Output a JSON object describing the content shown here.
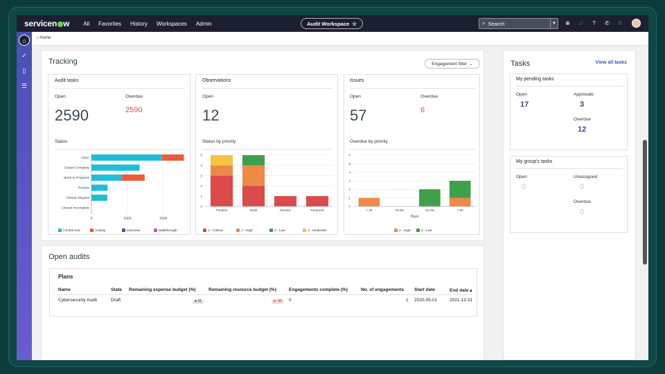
{
  "nav": {
    "logo": "servicenow",
    "links": [
      "All",
      "Favorites",
      "History",
      "Workspaces",
      "Admin"
    ],
    "workspace": "Audit Workspace",
    "search_placeholder": "Search"
  },
  "breadcrumb": "Home",
  "tracking": {
    "title": "Tracking",
    "filter": "Engagement filter",
    "audit_tasks": {
      "title": "Audit tasks",
      "open_label": "Open",
      "open": "2590",
      "overdue_label": "Overdue",
      "overdue": "2590",
      "status_label": "Status"
    },
    "observations": {
      "title": "Observations",
      "open_label": "Open",
      "open": "12",
      "status_label": "Status by priority"
    },
    "issues": {
      "title": "Issues",
      "open_label": "Open",
      "open": "57",
      "overdue_label": "Overdue",
      "overdue": "6",
      "status_label": "Overdue by priority",
      "xlabel": "Days"
    }
  },
  "chart_data": [
    {
      "type": "bar",
      "orientation": "horizontal",
      "stacked": true,
      "categories": [
        "Open",
        "Closed Complete",
        "Work In Progress",
        "Review",
        "Closed Skipped",
        "Closed Incomplete"
      ],
      "series": [
        {
          "name": "Control test",
          "color": "#1ebfd6",
          "values": [
            1960,
            1340,
            850,
            450,
            440,
            0
          ]
        },
        {
          "name": "Activity",
          "color": "#ee5a3a",
          "values": [
            610,
            0,
            630,
            0,
            0,
            0
          ]
        },
        {
          "name": "Interview",
          "color": "#6a3fc0",
          "values": [
            0,
            0,
            0,
            0,
            0,
            0
          ]
        },
        {
          "name": "Walkthrough",
          "color": "#d04fc4",
          "values": [
            0,
            0,
            0,
            0,
            0,
            0
          ]
        }
      ],
      "xticks": [
        "0",
        "1000",
        "2000"
      ],
      "xlim": [
        0,
        2600
      ]
    },
    {
      "type": "bar",
      "stacked": true,
      "categories": [
        "Finalize",
        "Draft",
        "Review",
        "Respond"
      ],
      "series": [
        {
          "name": "1 - Critical",
          "color": "#dc4a4a",
          "values": [
            3,
            2,
            1,
            1
          ]
        },
        {
          "name": "2 - High",
          "color": "#ee8a48",
          "values": [
            1,
            2,
            0,
            0
          ]
        },
        {
          "name": "4 - Low",
          "color": "#3fa04a",
          "values": [
            0,
            1,
            0,
            0
          ]
        },
        {
          "name": "3 - Moderate",
          "color": "#f6c443",
          "values": [
            1,
            0,
            0,
            0
          ]
        }
      ],
      "yticks": [
        "0",
        "1",
        "2",
        "3",
        "4",
        "5"
      ],
      "ylim": [
        0,
        5
      ]
    },
    {
      "type": "bar",
      "stacked": true,
      "categories": [
        "< 30",
        "31-60",
        "61-90",
        "> 90"
      ],
      "series": [
        {
          "name": "2 - High",
          "color": "#ee8a48",
          "values": [
            1,
            0,
            0,
            1
          ]
        },
        {
          "name": "4 - Low",
          "color": "#3fa04a",
          "values": [
            0,
            0,
            2,
            2
          ]
        }
      ],
      "yticks": [
        "0",
        "1",
        "2",
        "3",
        "4",
        "5",
        "6"
      ],
      "ylim": [
        0,
        6
      ],
      "xlabel": "Days"
    }
  ],
  "tasks": {
    "title": "Tasks",
    "view_all": "View all tasks",
    "pending": {
      "title": "My pending tasks",
      "open_label": "Open",
      "open": "17",
      "approvals_label": "Approvals",
      "approvals": "3",
      "overdue_label": "Overdue",
      "overdue": "12"
    },
    "group": {
      "title": "My group's tasks",
      "open_label": "Open",
      "open": "0",
      "unassigned_label": "Unassigned",
      "unassigned": "0",
      "overdue_label": "Overdue",
      "overdue": "0"
    }
  },
  "audits": {
    "title": "Open audits",
    "plans_title": "Plans",
    "columns": [
      "Name",
      "State",
      "Remaining expense budget (%)",
      "Remaining resource budget (%)",
      "Engagements complete (%)",
      "No. of engagements",
      "Start date",
      "End date"
    ],
    "row": {
      "name": "Cybersecurity Audit",
      "state": "Draft",
      "expense": "31",
      "resource": "-30",
      "engagements_complete": "0",
      "num_engagements": "1",
      "start": "2020-05-01",
      "end": "2021-12-31"
    }
  }
}
